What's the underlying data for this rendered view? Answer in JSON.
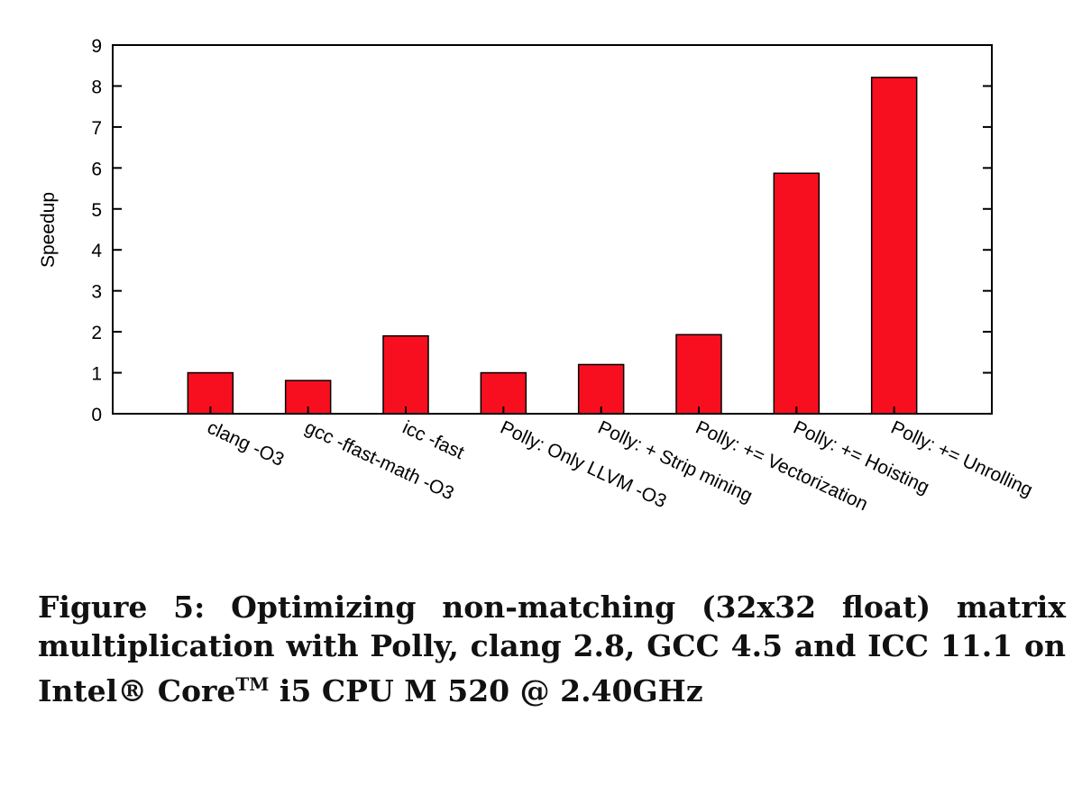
{
  "chart_data": {
    "type": "bar",
    "title": "",
    "xlabel": "",
    "ylabel": "Speedup",
    "ylim": [
      0,
      9
    ],
    "yticks": [
      "0",
      "1",
      "2",
      "3",
      "4",
      "5",
      "6",
      "7",
      "8",
      "9"
    ],
    "categories": [
      "clang -O3",
      "gcc -ffast-math -O3",
      "icc -fast",
      "Polly: Only LLVM -O3",
      "Polly: + Strip mining",
      "Polly: += Vectorization",
      "Polly: += Hoisting",
      "Polly: += Unrolling"
    ],
    "values": [
      1.0,
      0.81,
      1.9,
      1.0,
      1.2,
      1.93,
      5.87,
      8.21
    ],
    "bar_color": "#f80f1f",
    "grid": false,
    "legend": "none"
  },
  "caption": {
    "main": "Figure 5: Optimizing non-matching (32x32 float) matrix multiplication with Polly, clang 2.8, GCC 4.5 and ICC 11.1 on Intel",
    "registered": "®",
    "core": " Core",
    "tm": "TM",
    "rest": " i5 CPU M 520 @ 2.40GHz"
  }
}
